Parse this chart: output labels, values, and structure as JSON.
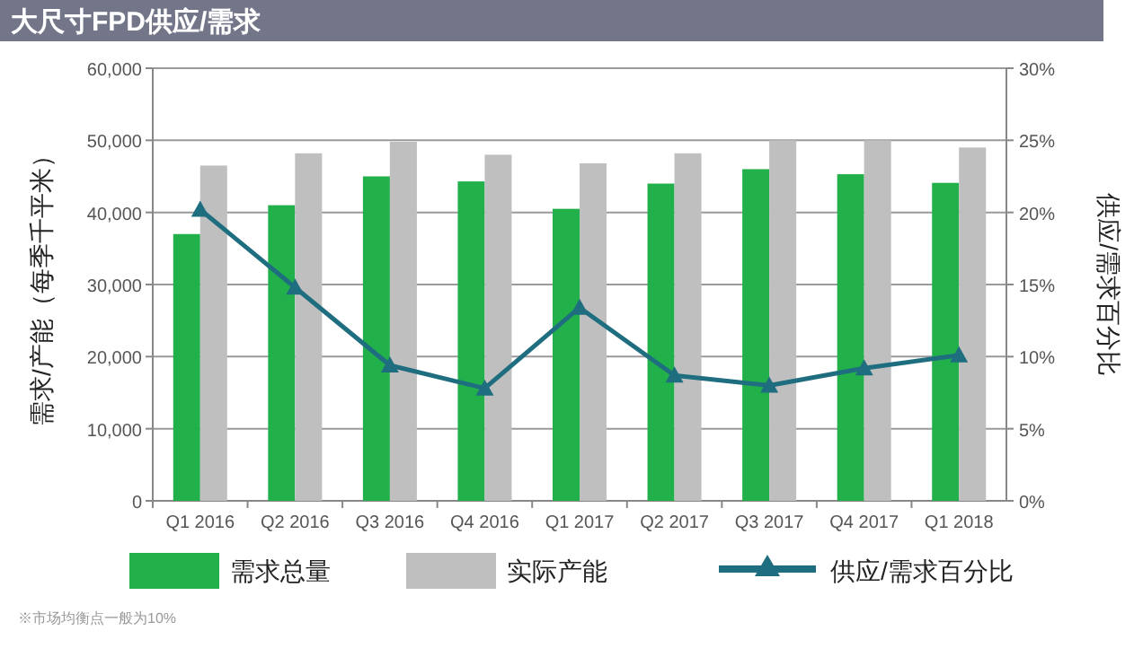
{
  "chart_data": {
    "type": "bar",
    "title": "大尺寸FPD供应/需求",
    "ylabel": "需求/产能（每季千平米）",
    "y2label": "供应/需求百分比",
    "categories": [
      "Q1 2016",
      "Q2 2016",
      "Q3 2016",
      "Q4 2016",
      "Q1 2017",
      "Q2 2017",
      "Q3 2017",
      "Q4 2017",
      "Q1 2018"
    ],
    "series": [
      {
        "name": "需求总量",
        "color": "#22b04b",
        "values": [
          37000,
          41000,
          45000,
          44300,
          40500,
          44000,
          46000,
          45300,
          44100
        ]
      },
      {
        "name": "实际产能",
        "color": "#bfbfbf",
        "values": [
          46500,
          48200,
          49800,
          48000,
          46800,
          48200,
          50000,
          50000,
          49000
        ]
      },
      {
        "name": "供应/需求百分比",
        "type": "line",
        "axis": "y2",
        "color": "#1f6e80",
        "marker": "triangle",
        "values": [
          20.2,
          14.8,
          9.4,
          7.8,
          13.4,
          8.7,
          8.0,
          9.2,
          10.1
        ]
      }
    ],
    "ylim": [
      0,
      60000
    ],
    "yticks": [
      {
        "value": 0,
        "label": "0"
      },
      {
        "value": 10000,
        "label": "10,000"
      },
      {
        "value": 20000,
        "label": "20,000"
      },
      {
        "value": 30000,
        "label": "30,000"
      },
      {
        "value": 40000,
        "label": "40,000"
      },
      {
        "value": 50000,
        "label": "50,000"
      },
      {
        "value": 60000,
        "label": "60,000"
      }
    ],
    "y2lim": [
      0,
      30
    ],
    "y2ticks": [
      {
        "value": 0,
        "label": "0%"
      },
      {
        "value": 5,
        "label": "5%"
      },
      {
        "value": 10,
        "label": "10%"
      },
      {
        "value": 15,
        "label": "15%"
      },
      {
        "value": 20,
        "label": "20%"
      },
      {
        "value": 25,
        "label": "25%"
      },
      {
        "value": 30,
        "label": "30%"
      }
    ],
    "grid": "y",
    "legend": "bottom",
    "annotations": [
      "※市场均衡点一般为10%"
    ]
  }
}
